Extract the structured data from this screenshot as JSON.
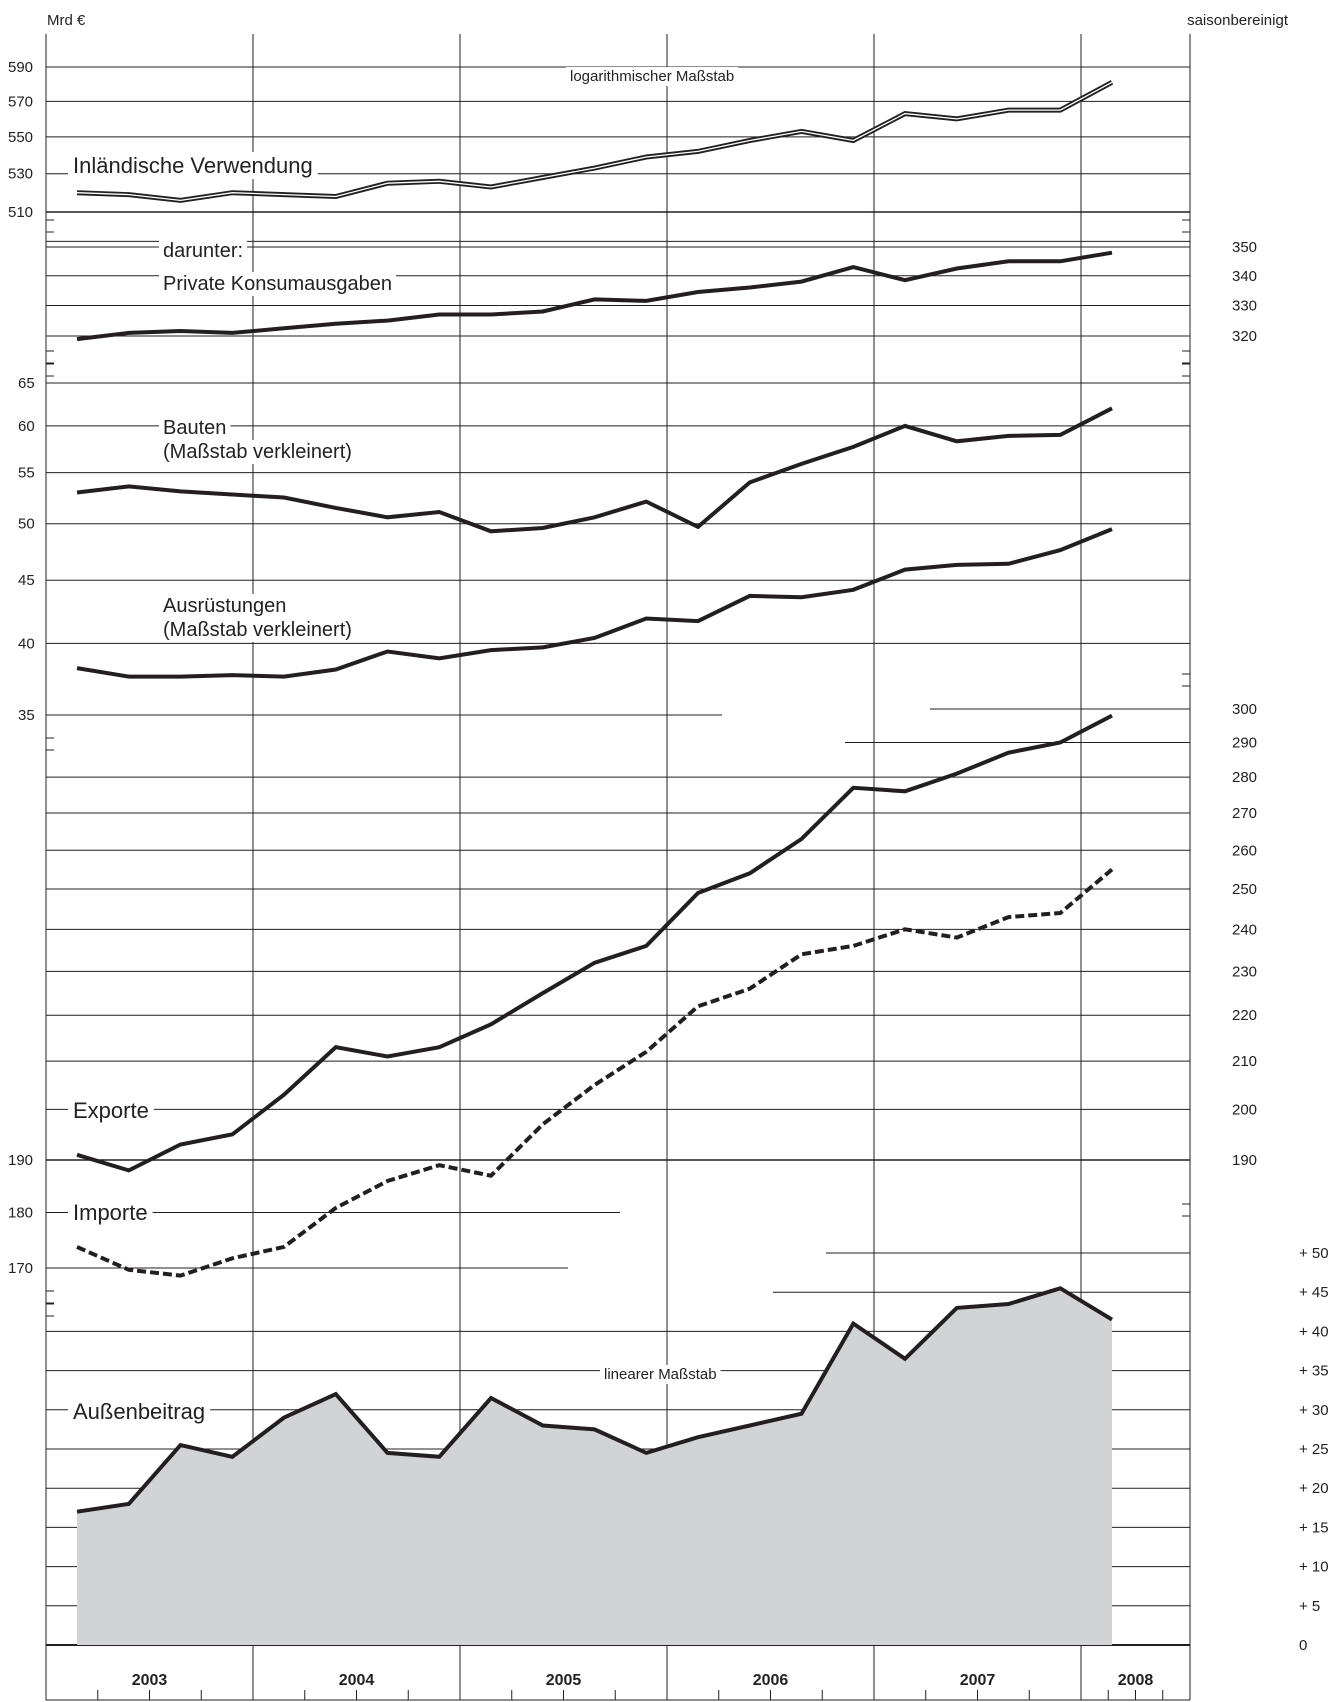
{
  "header": {
    "unit": "Mrd €",
    "note": "saisonbereinigt"
  },
  "annotations": {
    "log_scale": "logarithmischer Maßstab",
    "lin_scale": "linearer Maßstab"
  },
  "years": [
    "2003",
    "2004",
    "2005",
    "2006",
    "2007",
    "2008"
  ],
  "chart_data": {
    "type": "line",
    "x_unit": "quarter",
    "x": [
      "2003 Q1",
      "2003 Q2",
      "2003 Q3",
      "2003 Q4",
      "2004 Q1",
      "2004 Q2",
      "2004 Q3",
      "2004 Q4",
      "2005 Q1",
      "2005 Q2",
      "2005 Q3",
      "2005 Q4",
      "2006 Q1",
      "2006 Q2",
      "2006 Q3",
      "2006 Q4",
      "2007 Q1",
      "2007 Q2",
      "2007 Q3",
      "2007 Q4",
      "2008 Q1"
    ],
    "panels": [
      {
        "id": "inland",
        "scale": "log",
        "label": "Inländische Verwendung",
        "axis_side": "left",
        "ticks": [
          510,
          530,
          550,
          570,
          590
        ],
        "series": [
          {
            "name": "Inländische Verwendung",
            "style": "double",
            "values": [
              520,
              519,
              516,
              520,
              519,
              518,
              525,
              526,
              523,
              528,
              533,
              539,
              542,
              548,
              553,
              548,
              563,
              560,
              565,
              565,
              581
            ]
          }
        ]
      },
      {
        "id": "konsum",
        "scale": "log",
        "label_lines": [
          "darunter:",
          "Private Konsumausgaben"
        ],
        "axis_side": "right",
        "ticks": [
          320,
          330,
          340,
          350
        ],
        "series": [
          {
            "name": "Private Konsumausgaben",
            "style": "solid",
            "values": [
              319,
              321,
              321.6,
              321,
              322.5,
              324,
              325,
              327,
              327,
              328,
              332,
              331.5,
              334.5,
              336,
              338,
              343,
              338.5,
              342.5,
              345,
              345,
              348
            ]
          }
        ]
      },
      {
        "id": "invest",
        "scale": "log",
        "axis_side": "left",
        "ticks": [
          35,
          40,
          45,
          50,
          55,
          60,
          65
        ],
        "series": [
          {
            "name": "Bauten",
            "label_lines": [
              "Bauten",
              "(Maßstab verkleinert)"
            ],
            "style": "solid",
            "values": [
              53,
              53.6,
              53.1,
              52.8,
              52.5,
              51.5,
              50.6,
              51.1,
              49.3,
              49.6,
              50.6,
              52.1,
              49.7,
              54,
              55.9,
              57.7,
              60,
              58.3,
              58.9,
              59,
              62
            ]
          },
          {
            "name": "Ausrüstungen",
            "label_lines": [
              "Ausrüstungen",
              "(Maßstab verkleinert)"
            ],
            "style": "solid",
            "values": [
              38.2,
              37.6,
              37.6,
              37.7,
              37.6,
              38.1,
              39.4,
              38.9,
              39.5,
              39.7,
              40.4,
              41.9,
              41.7,
              43.7,
              43.6,
              44.2,
              45.9,
              46.3,
              46.4,
              47.6,
              49.5
            ]
          }
        ]
      },
      {
        "id": "trade",
        "scale": "log",
        "axis_left_ticks": [
          170,
          180,
          190
        ],
        "axis_right_ticks": [
          190,
          200,
          210,
          220,
          230,
          240,
          250,
          260,
          270,
          280,
          290,
          300
        ],
        "series": [
          {
            "name": "Exporte",
            "style": "solid",
            "values": [
              191,
              188,
              193,
              195,
              203,
              213,
              211,
              213,
              218,
              225,
              232,
              236,
              249,
              254,
              263,
              277,
              276,
              281,
              287,
              290,
              298
            ]
          },
          {
            "name": "Importe",
            "style": "dashed",
            "values": [
              174,
              170,
              169,
              172,
              174,
              181,
              186,
              189,
              187,
              197,
              205,
              212,
              222,
              226,
              234,
              236,
              240,
              238,
              243,
              244,
              255
            ]
          }
        ]
      },
      {
        "id": "aussen",
        "scale": "linear",
        "label": "Außenbeitrag",
        "axis_side": "right",
        "ticks": [
          0,
          5,
          10,
          15,
          20,
          25,
          30,
          35,
          40,
          45,
          50
        ],
        "tick_labels": [
          "0",
          "+ 5",
          "+ 10",
          "+ 15",
          "+ 20",
          "+ 25",
          "+ 30",
          "+ 35",
          "+ 40",
          "+ 45",
          "+ 50"
        ],
        "series": [
          {
            "name": "Außenbeitrag",
            "style": "area",
            "fill": "#d2d3d5",
            "values": [
              17,
              18,
              25.5,
              24,
              29,
              32,
              24.5,
              24,
              31.5,
              28,
              27.5,
              24.5,
              26.5,
              28,
              29.5,
              41,
              36.5,
              43,
              43.5,
              45.5,
              41.5
            ]
          }
        ]
      }
    ]
  },
  "colors": {
    "line": "#231f20",
    "grid": "#231f20",
    "area_fill": "#d2d3d5"
  }
}
